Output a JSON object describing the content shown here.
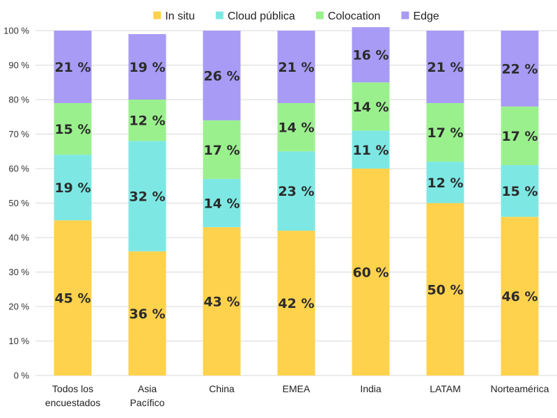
{
  "chart_data": {
    "type": "bar",
    "stacked": true,
    "categories": [
      [
        "Todos los",
        "encuestados"
      ],
      [
        "Asia",
        "Pacífico"
      ],
      [
        "China"
      ],
      [
        "EMEA"
      ],
      [
        "India"
      ],
      [
        "LATAM"
      ],
      [
        "Norteamérica"
      ]
    ],
    "series": [
      {
        "name": "In situ",
        "color": "#FFD24D",
        "values": [
          45,
          36,
          43,
          42,
          60,
          50,
          46
        ]
      },
      {
        "name": "Cloud pública",
        "color": "#7DE8E3",
        "values": [
          19,
          32,
          14,
          23,
          11,
          12,
          15
        ]
      },
      {
        "name": "Colocation",
        "color": "#9BF08E",
        "values": [
          15,
          12,
          17,
          14,
          14,
          17,
          17
        ]
      },
      {
        "name": "Edge",
        "color": "#A79BF5",
        "values": [
          21,
          19,
          26,
          21,
          16,
          21,
          22
        ]
      }
    ],
    "ylim": [
      0,
      100
    ],
    "yticks": [
      0,
      10,
      20,
      30,
      40,
      50,
      60,
      70,
      80,
      90,
      100
    ],
    "ytick_suffix": " %",
    "data_label_suffix": " %",
    "legend_position": "top",
    "grid": true,
    "gridline_color": "#D9D9D9"
  }
}
